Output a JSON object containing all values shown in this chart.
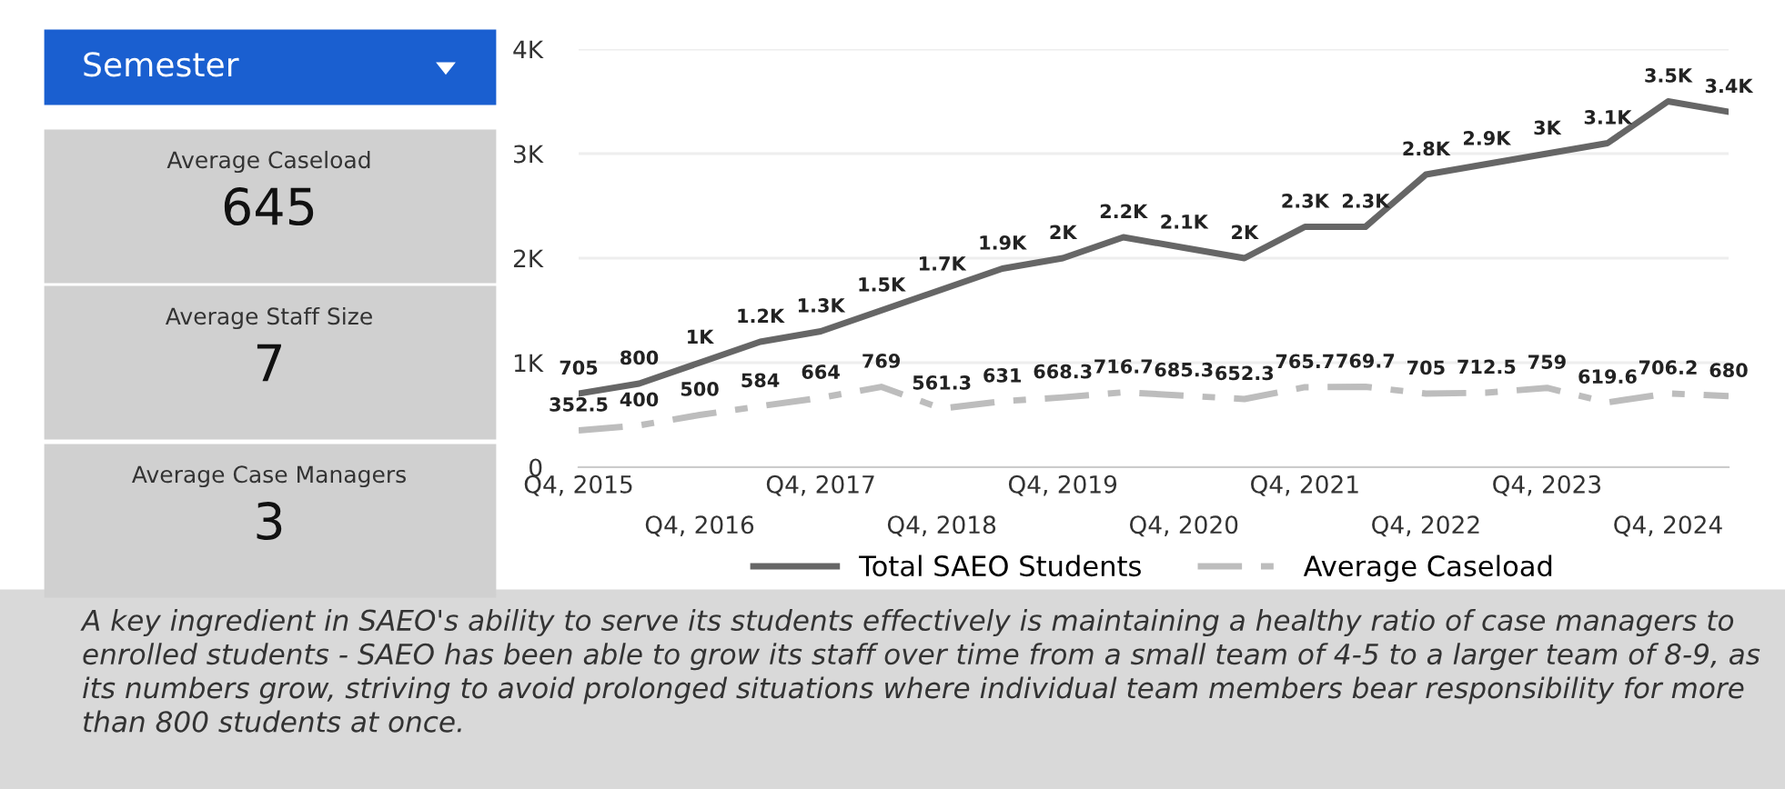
{
  "chart_data": [
    {
      "type": "other",
      "annotations": [
        "Semester",
        "Average Caseload",
        "645",
        "Average Staff Size",
        "7",
        "Average Case Managers",
        "3"
      ]
    },
    {
      "type": "line",
      "categories": [
        "Q4, 2015",
        null,
        "Q4, 2016",
        null,
        "Q4, 2017",
        null,
        "Q4, 2018",
        null,
        "Q4, 2019",
        null,
        "Q4, 2020",
        null,
        "Q4, 2021",
        null,
        "Q4, 2022",
        null,
        "Q4, 2023",
        null,
        "Q4, 2024",
        null
      ],
      "series": [
        {
          "name": "Total SAEO Students",
          "color": "#666666",
          "line_style": "solid",
          "values": [
            705,
            800,
            1000,
            1200,
            1300,
            1500,
            1700,
            1900,
            2000,
            2200,
            2100,
            2000,
            2300,
            2300,
            2800,
            2900,
            3000,
            3100,
            3500,
            3400
          ],
          "value_labels": [
            "705",
            "800",
            "1K",
            "1.2K",
            "1.3K",
            "1.5K",
            "1.7K",
            "1.9K",
            "2K",
            "2.2K",
            "2.1K",
            "2K",
            "2.3K",
            "2.3K",
            "2.8K",
            "2.9K",
            "3K",
            "3.1K",
            "3.5K",
            "3.4K"
          ]
        },
        {
          "name": "Average Caseload",
          "color": "#bdbdbd",
          "line_style": "dashed",
          "values": [
            352.5,
            400,
            500,
            584,
            664,
            769,
            561.3,
            631,
            668.3,
            716.7,
            685.3,
            652.3,
            765.7,
            769.7,
            705,
            712.5,
            759,
            619.6,
            706.2,
            680
          ],
          "value_labels": [
            "352.5",
            "400",
            "500",
            "584",
            "664",
            "769",
            "561.3",
            "631",
            "668.3",
            "716.7",
            "685.3",
            "652.3",
            "765.7",
            "769.7",
            "705",
            "712.5",
            "759",
            "619.6",
            "706.2",
            "680"
          ]
        }
      ],
      "ylim": [
        0,
        4000
      ],
      "yticks": [
        0,
        {
          "value": 1000,
          "label": "1K"
        },
        {
          "value": 2000,
          "label": "2K"
        },
        {
          "value": 3000,
          "label": "3K"
        },
        {
          "value": 4000,
          "label": "4K"
        }
      ],
      "grid": "y",
      "legend": "bottom",
      "marker": "none",
      "annotations": [
        "A key ingredient in SAEO's ability to serve its students effectively is maintaining a healthy ratio of case managers to enrolled students - SAEO has been able to grow its staff over time from a small team of 4-5 to a larger team of 8-9, as its numbers grow, striving to avoid prolonged situations where individual team members bear responsibility for more than 800 students at once."
      ]
    }
  ]
}
